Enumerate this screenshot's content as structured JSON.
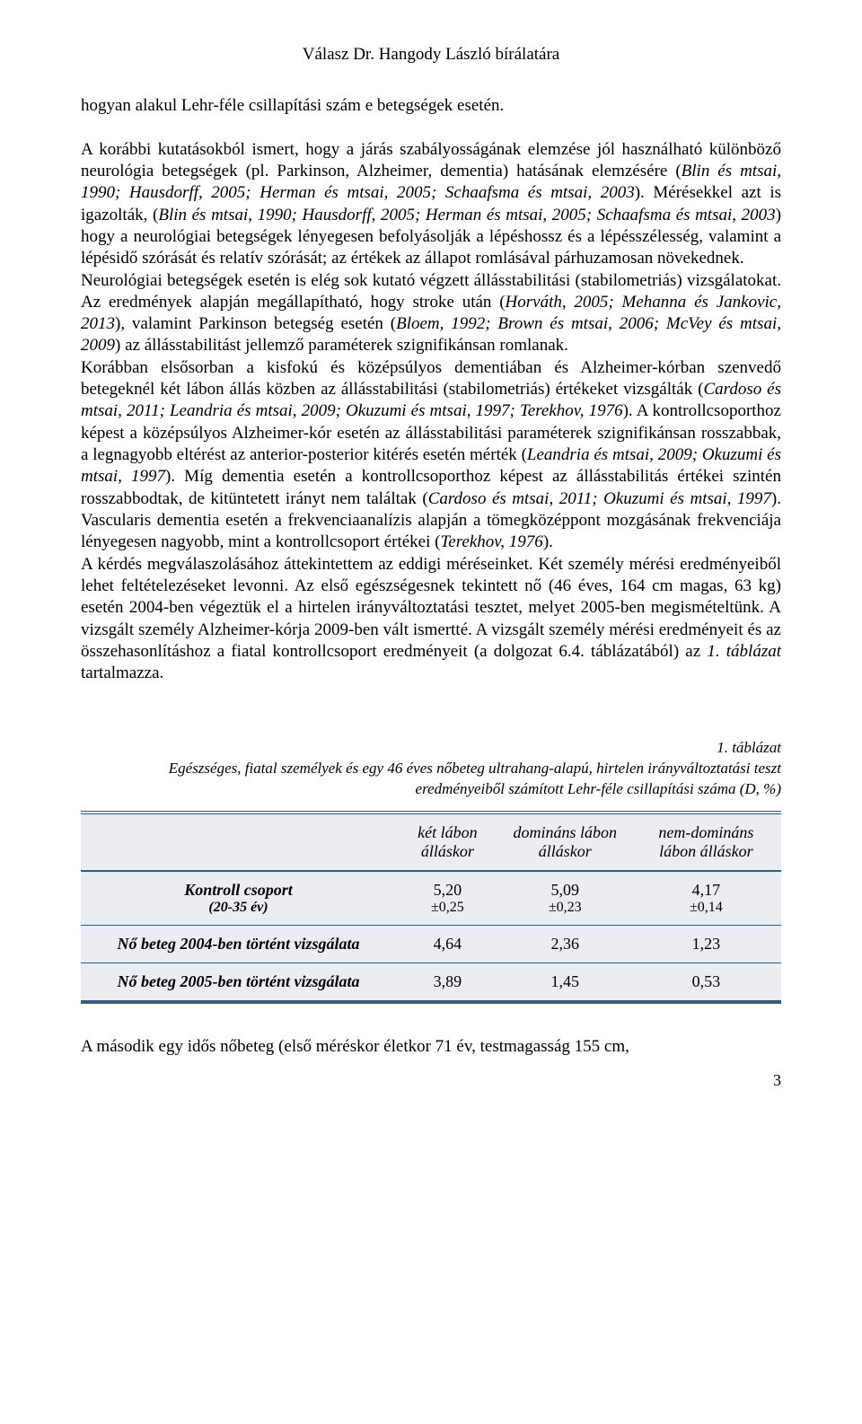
{
  "running_head": "Válasz Dr. Hangody László bírálatára",
  "paragraphs": {
    "p1_a": "hogyan alakul Lehr-féle csillapítási szám e betegségek esetén.",
    "p2_a": "A korábbi kutatásokból ismert, hogy a járás szabályosságának elemzése jól használható különböző neurológia betegségek (pl. Parkinson, Alzheimer, dementia) hatásának elemzésére (",
    "p2_i1": "Blin és mtsai, 1990; Hausdorff, 2005; Herman és mtsai, 2005; Schaafsma és mtsai, 2003",
    "p2_b": "). Mérésekkel azt is igazolták, (",
    "p2_i2": "Blin és mtsai, 1990; Hausdorff, 2005; Herman és mtsai, 2005; Schaafsma és mtsai, 2003",
    "p2_c": ") hogy a neurológiai betegségek lényegesen befolyásolják a lépéshossz és a lépésszélesség, valamint a lépésidő szórását és relatív szórását; az értékek az állapot romlásával párhuzamosan növekednek.",
    "p3_a": "Neurológiai betegségek esetén is elég sok kutató végzett állásstabilitási (stabilometriás) vizsgálatokat. Az eredmények alapján megállapítható, hogy stroke után (",
    "p3_i1": "Horváth, 2005; Mehanna és Jankovic, 2013",
    "p3_b": "), valamint Parkinson betegség esetén (",
    "p3_i2": "Bloem, 1992; Brown és mtsai, 2006; McVey és mtsai, 2009",
    "p3_c": ") az állásstabilitást jellemző paraméterek szignifikánsan romlanak.",
    "p4_a": "Korábban elsősorban a kisfokú és középsúlyos dementiában és Alzheimer-kórban szenvedő betegeknél két lábon állás közben az állásstabilitási (stabilometriás) értékeket vizsgálták (",
    "p4_i1": "Cardoso és mtsai, 2011; Leandria és mtsai, 2009; Okuzumi és mtsai, 1997; Terekhov, 1976",
    "p4_b": "). A kontrollcsoporthoz képest a középsúlyos Alzheimer-kór esetén az állásstabilitási paraméterek szignifikánsan rosszabbak, a legnagyobb eltérést az anterior-posterior kitérés esetén mérték (",
    "p4_i2": "Leandria és mtsai, 2009; Okuzumi és mtsai, 1997",
    "p4_c": "). Míg dementia esetén a kontrollcsoporthoz képest az állásstabilitás értékei szintén rosszabbodtak, de kitüntetett irányt nem találtak (",
    "p4_i3": "Cardoso és mtsai, 2011; Okuzumi és mtsai, 1997",
    "p4_d": "). Vascularis dementia esetén a frekvenciaanalízis alapján a tömegközéppont mozgásának frekvenciája lényegesen nagyobb, mint a kontrollcsoport értékei (",
    "p4_i4": "Terekhov, 1976",
    "p4_e": ").",
    "p5_a": "A kérdés megválaszolásához áttekintettem az eddigi méréseinket. Két személy mérési eredményeiből lehet feltételezéseket levonni. Az első egészségesnek tekintett nő (46 éves, 164 cm magas, 63 kg) esetén 2004-ben végeztük el a hirtelen irányváltoztatási tesztet, melyet 2005-ben megismételtünk. A vizsgált személy Alzheimer-kórja 2009-ben vált ismertté. A vizsgált személy mérési eredményeit és az összehasonlításhoz a fiatal kontrollcsoport eredményeit (a dolgozat 6.4. táblázatából) az ",
    "p5_i1": "1. táblázat",
    "p5_b": " tartalmazza."
  },
  "table": {
    "label": "1. táblázat",
    "caption": "Egészséges, fiatal személyek és egy 46 éves nőbeteg ultrahang-alapú, hirtelen irányváltoztatási teszt eredményeiből számított Lehr-féle csillapítási száma (D, %)",
    "background_color": "#e9eef3",
    "rule_color": "#375a7f",
    "columns": [
      {
        "key": "rowhead",
        "label": ""
      },
      {
        "key": "c1",
        "label": "két lábon álláskor"
      },
      {
        "key": "c2",
        "label": "domináns lábon álláskor"
      },
      {
        "key": "c3",
        "label": "nem-domináns lábon álláskor"
      }
    ],
    "rows": [
      {
        "head_main": "Kontroll csoport",
        "head_sub": "(20-35 év)",
        "c1_main": "5,20",
        "c1_sub": "±0,25",
        "c2_main": "5,09",
        "c2_sub": "±0,23",
        "c3_main": "4,17",
        "c3_sub": "±0,14"
      },
      {
        "head_main": "Nő beteg 2004-ben történt vizsgálata",
        "head_sub": "",
        "c1_main": "4,64",
        "c1_sub": "",
        "c2_main": "2,36",
        "c2_sub": "",
        "c3_main": "1,23",
        "c3_sub": ""
      },
      {
        "head_main": "Nő beteg 2005-ben történt vizsgálata",
        "head_sub": "",
        "c1_main": "3,89",
        "c1_sub": "",
        "c2_main": "1,45",
        "c2_sub": "",
        "c3_main": "0,53",
        "c3_sub": ""
      }
    ]
  },
  "after_table": "A második egy idős nőbeteg (első méréskor életkor 71 év, testmagasság 155 cm,",
  "page_number": "3"
}
